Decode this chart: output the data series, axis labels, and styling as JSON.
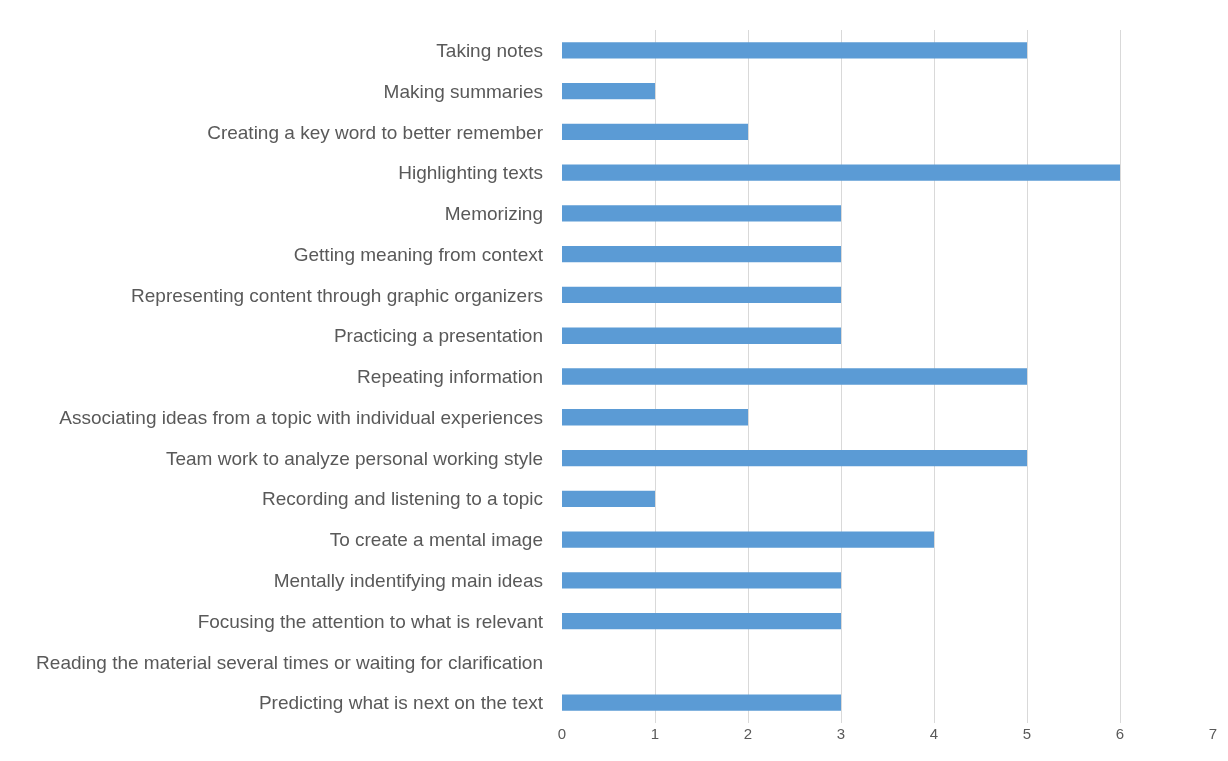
{
  "chart_data": {
    "type": "bar",
    "orientation": "horizontal",
    "categories": [
      "Taking notes",
      "Making summaries",
      "Creating a key word to better remember",
      "Highlighting texts",
      "Memorizing",
      "Getting meaning from context",
      "Representing content through graphic organizers",
      "Practicing a presentation",
      "Repeating information",
      "Associating ideas from a topic with individual experiences",
      "Team work to analyze personal working style",
      "Recording and listening to a topic",
      "To create a mental image",
      "Mentally indentifying main ideas",
      "Focusing the attention to what is relevant",
      "Reading the material several times or waiting for clarification",
      "Predicting what is next on the text"
    ],
    "values": [
      5,
      1,
      2,
      6,
      3,
      3,
      3,
      3,
      5,
      2,
      5,
      1,
      4,
      3,
      3,
      0,
      3
    ],
    "color": "#5b9bd5",
    "xlim": [
      0,
      7
    ],
    "xticks": [
      0,
      1,
      2,
      3,
      4,
      5,
      6,
      7
    ],
    "grid": "x"
  }
}
